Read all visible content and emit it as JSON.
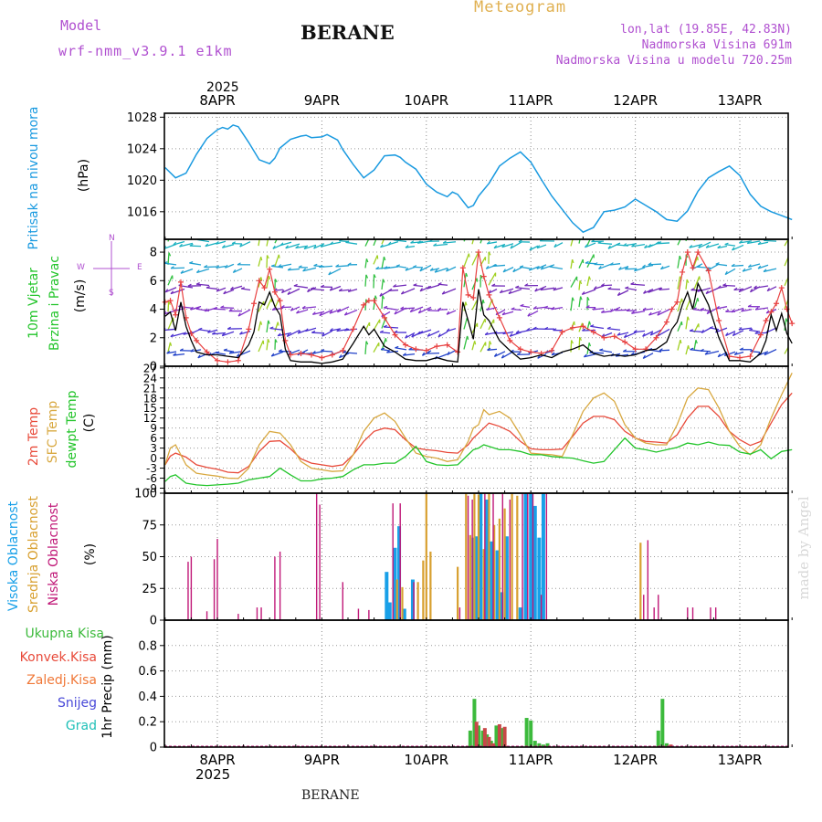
{
  "header": {
    "model_label": "Model",
    "model_name": "wrf-nmm_v3.9.1 e1km",
    "title": "BERANE",
    "product": "Meteogram",
    "lonlat": "lon,lat (19.85E, 42.83N)",
    "elevation": "Nadmorska Visina 691m",
    "model_elevation": "Nadmorska Visina u modelu 720.25m",
    "year_top": "2025",
    "year_bottom": "2025",
    "footer": "BERANE",
    "watermark": "made by Angel"
  },
  "dates": [
    "8APR",
    "9APR",
    "10APR",
    "11APR",
    "12APR",
    "13APR"
  ],
  "panels": {
    "pressure": {
      "label": "Pritisak na nivou mora",
      "unit": "(hPa)"
    },
    "wind": {
      "label_1": "10m Vjetar",
      "label_2": "Brzina i Pravac",
      "unit": "(m/s)",
      "compass_n": "N",
      "compass_s": "S",
      "compass_w": "W",
      "compass_e": "E"
    },
    "temp": {
      "label_1": "2m Temp",
      "label_2": "SFC Temp",
      "label_3": "dewpt Temp",
      "unit": "(C)"
    },
    "cloud": {
      "label_1": "Visoka Oblacnost",
      "label_2": "Srednja Oblacnost",
      "label_3": "Niska Oblacnost",
      "unit": "(%)"
    },
    "precip": {
      "legend": [
        "Ukupna Kisa",
        "Konvek.Kisa",
        "Zaledj.Kisa",
        "Snijeg",
        "Grad"
      ],
      "unit": "1hr Precip (mm)"
    }
  },
  "colors": {
    "pressure": "#1a9ae0",
    "temp2m": "#e84a3a",
    "sfc": "#d8a840",
    "dew": "#22c42a",
    "high": "#18a0e8",
    "mid": "#d8a030",
    "low": "#c01878",
    "total": "#3cba3c",
    "conv": "#c84848",
    "frz": "#e07830",
    "snow": "#4040d0",
    "grad": "#20c0b8",
    "wind_speed": "#000000",
    "wind_gust": "#e84040"
  },
  "chart_data": [
    {
      "type": "line",
      "title": "",
      "ylabel": "Pritisak na nivou mora (hPa)",
      "ylim": [
        1012.5,
        1028.5
      ],
      "yticks": [
        1016,
        1020,
        1024,
        1028
      ],
      "x": [
        -0.5,
        -0.4,
        -0.3,
        -0.2,
        -0.1,
        0.0,
        0.05,
        0.1,
        0.15,
        0.2,
        0.25,
        0.3,
        0.4,
        0.5,
        0.55,
        0.6,
        0.7,
        0.8,
        0.85,
        0.9,
        1.0,
        1.05,
        1.15,
        1.2,
        1.3,
        1.4,
        1.5,
        1.6,
        1.7,
        1.75,
        1.8,
        1.9,
        2.0,
        2.1,
        2.2,
        2.25,
        2.3,
        2.4,
        2.45,
        2.5,
        2.6,
        2.7,
        2.8,
        2.9,
        3.0,
        3.1,
        3.2,
        3.3,
        3.4,
        3.5,
        3.6,
        3.7,
        3.8,
        3.9,
        4.0,
        4.1,
        4.2,
        4.25,
        4.3,
        4.4,
        4.5,
        4.6,
        4.7,
        4.8,
        4.9,
        5.0,
        5.1,
        5.2,
        5.3,
        5.4,
        5.5
      ],
      "series": [
        {
          "name": "",
          "values": [
            1021.6,
            1020.3,
            1020.9,
            1023.3,
            1025.3,
            1026.4,
            1026.7,
            1026.5,
            1027.0,
            1026.8,
            1025.8,
            1024.8,
            1022.6,
            1022.1,
            1022.8,
            1024.1,
            1025.2,
            1025.6,
            1025.7,
            1025.4,
            1025.5,
            1025.8,
            1025.1,
            1023.9,
            1022.0,
            1020.3,
            1021.3,
            1023.1,
            1023.2,
            1022.9,
            1022.3,
            1021.4,
            1019.5,
            1018.5,
            1017.9,
            1018.5,
            1018.2,
            1016.5,
            1016.8,
            1018.0,
            1019.6,
            1021.8,
            1022.8,
            1023.6,
            1022.3,
            1020.1,
            1018.0,
            1016.3,
            1014.6,
            1013.4,
            1014.0,
            1016.0,
            1016.2,
            1016.6,
            1017.6,
            1016.8,
            1016.0,
            1015.5,
            1015.0,
            1014.8,
            1016.1,
            1018.6,
            1020.3,
            1021.1,
            1021.8,
            1020.6,
            1018.2,
            1016.7,
            1016.0,
            1015.5,
            1015.0
          ]
        }
      ]
    },
    {
      "type": "line",
      "title": "",
      "ylabel": "10m Vjetar Brzina i Pravac (m/s)",
      "ylim": [
        0,
        8.9
      ],
      "yticks": [
        0,
        2,
        4,
        6,
        8
      ],
      "x": [
        -0.5,
        -0.45,
        -0.4,
        -0.35,
        -0.3,
        -0.25,
        -0.2,
        -0.1,
        0.0,
        0.1,
        0.2,
        0.3,
        0.35,
        0.4,
        0.45,
        0.5,
        0.55,
        0.6,
        0.65,
        0.7,
        0.8,
        0.9,
        1.0,
        1.1,
        1.2,
        1.3,
        1.4,
        1.45,
        1.5,
        1.6,
        1.7,
        1.8,
        1.9,
        2.0,
        2.1,
        2.2,
        2.3,
        2.35,
        2.4,
        2.45,
        2.5,
        2.55,
        2.6,
        2.7,
        2.8,
        2.9,
        3.0,
        3.1,
        3.2,
        3.3,
        3.4,
        3.5,
        3.6,
        3.7,
        3.8,
        3.9,
        4.0,
        4.1,
        4.2,
        4.3,
        4.35,
        4.4,
        4.45,
        4.5,
        4.55,
        4.6,
        4.7,
        4.8,
        4.9,
        5.0,
        5.1,
        5.2,
        5.25,
        5.3,
        5.35,
        5.4,
        5.45,
        5.5
      ],
      "series": [
        {
          "name": "",
          "values": [
            3.5,
            3.8,
            2.5,
            4.5,
            2.8,
            1.8,
            1.0,
            0.8,
            0.8,
            0.7,
            0.6,
            1.5,
            2.4,
            4.5,
            4.3,
            5.2,
            4.2,
            3.6,
            1.2,
            0.4,
            0.3,
            0.3,
            0.2,
            0.3,
            0.5,
            1.6,
            2.8,
            2.2,
            2.6,
            1.4,
            1.0,
            0.5,
            0.4,
            0.4,
            0.6,
            0.4,
            0.3,
            4.5,
            3.2,
            1.9,
            5.4,
            3.6,
            3.2,
            1.8,
            1.1,
            0.5,
            0.6,
            0.8,
            0.6,
            1.0,
            1.2,
            1.5,
            0.9,
            0.7,
            0.8,
            0.7,
            0.8,
            1.1,
            1.2,
            1.7,
            2.6,
            3.1,
            4.3,
            5.2,
            4.0,
            5.8,
            4.3,
            2.0,
            0.4,
            0.4,
            0.3,
            0.9,
            1.8,
            3.6,
            2.5,
            3.7,
            2.3,
            1.6
          ]
        },
        {
          "name": "",
          "values": [
            4.5,
            4.6,
            3.6,
            5.9,
            3.4,
            2.3,
            1.8,
            1.0,
            0.4,
            0.3,
            0.4,
            2.6,
            4.4,
            6.0,
            5.5,
            6.8,
            5.2,
            4.6,
            1.8,
            0.8,
            0.9,
            0.8,
            0.6,
            0.8,
            1.1,
            2.6,
            4.3,
            4.6,
            4.6,
            3.4,
            2.2,
            1.5,
            1.2,
            1.1,
            1.4,
            1.5,
            1.0,
            6.9,
            5.0,
            4.8,
            8.0,
            6.3,
            5.0,
            3.4,
            1.8,
            1.2,
            1.0,
            0.9,
            1.1,
            2.4,
            2.7,
            2.8,
            2.4,
            2.0,
            2.1,
            1.7,
            1.2,
            1.2,
            2.0,
            3.1,
            4.0,
            4.5,
            6.6,
            8.0,
            6.9,
            8.0,
            6.7,
            3.2,
            0.7,
            0.6,
            0.7,
            2.2,
            3.2,
            3.8,
            4.4,
            5.5,
            4.0,
            3.0
          ]
        }
      ]
    },
    {
      "type": "line",
      "title": "",
      "ylabel": "2m Temp / SFC Temp / dewpt Temp (C)",
      "ylim": [
        -10.5,
        27.5
      ],
      "yticks": [
        -9,
        -6,
        -3,
        0,
        3,
        6,
        9,
        12,
        15,
        18,
        21,
        24,
        27
      ],
      "x": [
        -0.5,
        -0.45,
        -0.4,
        -0.3,
        -0.2,
        -0.1,
        0.0,
        0.1,
        0.2,
        0.3,
        0.4,
        0.5,
        0.6,
        0.7,
        0.8,
        0.9,
        1.0,
        1.1,
        1.2,
        1.3,
        1.4,
        1.5,
        1.6,
        1.7,
        1.8,
        1.9,
        2.0,
        2.1,
        2.2,
        2.3,
        2.4,
        2.45,
        2.5,
        2.55,
        2.6,
        2.7,
        2.8,
        2.9,
        3.0,
        3.1,
        3.2,
        3.3,
        3.4,
        3.5,
        3.6,
        3.7,
        3.8,
        3.9,
        4.0,
        4.1,
        4.2,
        4.3,
        4.4,
        4.5,
        4.6,
        4.7,
        4.8,
        4.9,
        5.0,
        5.1,
        5.2,
        5.3,
        5.4,
        5.5
      ],
      "series": [
        {
          "name": "2m Temp",
          "values": [
            -2.0,
            0.6,
            1.5,
            0.3,
            -2.0,
            -2.8,
            -3.3,
            -4.2,
            -4.4,
            -2.5,
            2.0,
            5.0,
            5.2,
            2.8,
            -0.2,
            -1.5,
            -2.0,
            -2.5,
            -2.0,
            1.0,
            5.0,
            8.0,
            9.0,
            8.5,
            5.5,
            3.0,
            2.5,
            2.2,
            1.7,
            1.5,
            4.0,
            6.0,
            7.5,
            9.0,
            10.5,
            9.5,
            8.0,
            5.0,
            2.8,
            2.5,
            2.5,
            2.7,
            6.5,
            10.5,
            12.5,
            12.5,
            11.5,
            8.0,
            6.0,
            5.0,
            4.8,
            4.5,
            7.0,
            12.0,
            15.5,
            15.5,
            12.5,
            8.0,
            5.5,
            3.8,
            5.0,
            10.5,
            16.0,
            19.5
          ]
        },
        {
          "name": "SFC Temp",
          "values": [
            -2.0,
            3.0,
            4.0,
            -2.0,
            -4.5,
            -5.0,
            -5.4,
            -6.0,
            -6.1,
            -3.0,
            4.0,
            8.0,
            7.5,
            4.0,
            -1.0,
            -3.0,
            -3.5,
            -4.0,
            -3.8,
            1.0,
            8.0,
            12.0,
            13.5,
            11.0,
            6.0,
            1.5,
            0.5,
            0.0,
            -1.0,
            -0.5,
            5.0,
            9.0,
            10.0,
            14.5,
            13.0,
            14.0,
            12.0,
            7.0,
            1.5,
            1.2,
            1.0,
            0.5,
            7.0,
            14.0,
            18.0,
            19.5,
            17.0,
            10.0,
            6.0,
            4.5,
            4.0,
            4.0,
            10.0,
            18.0,
            21.0,
            20.5,
            15.0,
            8.0,
            3.5,
            1.0,
            4.0,
            12.0,
            19.0,
            25.5
          ]
        },
        {
          "name": "dewpt Temp",
          "values": [
            -7.0,
            -5.5,
            -5.0,
            -7.5,
            -8.0,
            -8.2,
            -8.0,
            -7.8,
            -7.5,
            -6.5,
            -6.0,
            -5.5,
            -3.0,
            -5.0,
            -6.8,
            -6.8,
            -6.2,
            -6.0,
            -5.5,
            -3.5,
            -2.0,
            -2.0,
            -1.5,
            -1.5,
            0.5,
            3.5,
            -1.0,
            -2.0,
            -2.2,
            -2.0,
            1.0,
            2.5,
            3.0,
            4.0,
            3.5,
            2.5,
            2.5,
            2.0,
            1.0,
            1.0,
            0.5,
            0.2,
            0.0,
            -0.8,
            -1.5,
            -1.0,
            2.5,
            6.0,
            3.0,
            2.5,
            1.8,
            2.5,
            3.2,
            4.5,
            4.0,
            4.8,
            4.0,
            3.8,
            1.8,
            1.2,
            2.5,
            -0.2,
            2.0,
            2.5
          ]
        }
      ]
    },
    {
      "type": "bar",
      "title": "",
      "ylabel": "Visoka / Srednja / Niska Oblacnost (%)",
      "ylim": [
        0,
        100
      ],
      "yticks": [
        0,
        25,
        50,
        75,
        100
      ],
      "series": [
        {
          "name": "Visoka Oblacnost",
          "x": [
            1.62,
            1.65,
            1.7,
            1.74,
            1.79,
            1.87,
            2.45,
            2.48,
            2.52,
            2.58,
            2.62,
            2.68,
            2.72,
            2.77,
            2.9,
            2.95,
            3.0,
            3.04,
            3.08,
            3.12
          ],
          "values": [
            38,
            14,
            57,
            74,
            9,
            32,
            65,
            66,
            100,
            95,
            62,
            55,
            22,
            66,
            10,
            100,
            100,
            90,
            65,
            100
          ]
        },
        {
          "name": "Srednja Oblacnost",
          "x": [
            1.72,
            1.77,
            1.92,
            1.97,
            2.0,
            2.04,
            2.3,
            2.38,
            2.42,
            2.46,
            2.5,
            2.55,
            2.6,
            2.65,
            2.7,
            2.75,
            2.82,
            2.87,
            4.05
          ],
          "values": [
            32,
            26,
            30,
            47,
            100,
            54,
            42,
            100,
            67,
            100,
            99,
            56,
            100,
            75,
            80,
            88,
            100,
            98,
            61
          ]
        },
        {
          "name": "Niska Oblacnost",
          "x": [
            -0.28,
            -0.25,
            -0.1,
            -0.03,
            0.0,
            0.2,
            0.38,
            0.42,
            0.55,
            0.6,
            0.95,
            0.98,
            1.2,
            1.35,
            1.45,
            1.68,
            1.75,
            1.88,
            2.32,
            2.4,
            2.44,
            2.56,
            2.64,
            2.73,
            2.8,
            2.92,
            2.97,
            3.02,
            3.1,
            3.15,
            4.08,
            4.12,
            4.18,
            4.22,
            4.5,
            4.55,
            4.72,
            4.77
          ],
          "values": [
            46,
            50,
            7,
            48,
            64,
            5,
            10,
            10,
            50,
            54,
            100,
            91,
            30,
            9,
            8,
            92,
            92,
            30,
            10,
            98,
            95,
            100,
            100,
            100,
            95,
            100,
            100,
            100,
            20,
            100,
            20,
            63,
            10,
            20,
            10,
            10,
            10,
            10
          ]
        }
      ]
    },
    {
      "type": "bar",
      "title": "",
      "ylabel": "1hr Precip (mm)",
      "ylim": [
        0,
        1.0
      ],
      "yticks": [
        0,
        0.2,
        0.4,
        0.6,
        0.8
      ],
      "series": [
        {
          "name": "Ukupna Kisa",
          "x": [
            2.42,
            2.46,
            2.5,
            2.54,
            2.58,
            2.62,
            2.67,
            2.72,
            2.96,
            3.0,
            3.04,
            3.08,
            3.12,
            3.16,
            4.22,
            4.26,
            4.3
          ],
          "values": [
            0.13,
            0.38,
            0.17,
            0.13,
            0.1,
            0.05,
            0.17,
            0.15,
            0.23,
            0.21,
            0.05,
            0.03,
            0.02,
            0.03,
            0.13,
            0.38,
            0.03
          ]
        },
        {
          "name": "Konvek.Kisa",
          "x": [
            2.48,
            2.56,
            2.6,
            2.64,
            2.7,
            2.75,
            4.34
          ],
          "values": [
            0.2,
            0.15,
            0.08,
            0.03,
            0.18,
            0.16,
            0.02
          ]
        }
      ]
    }
  ]
}
